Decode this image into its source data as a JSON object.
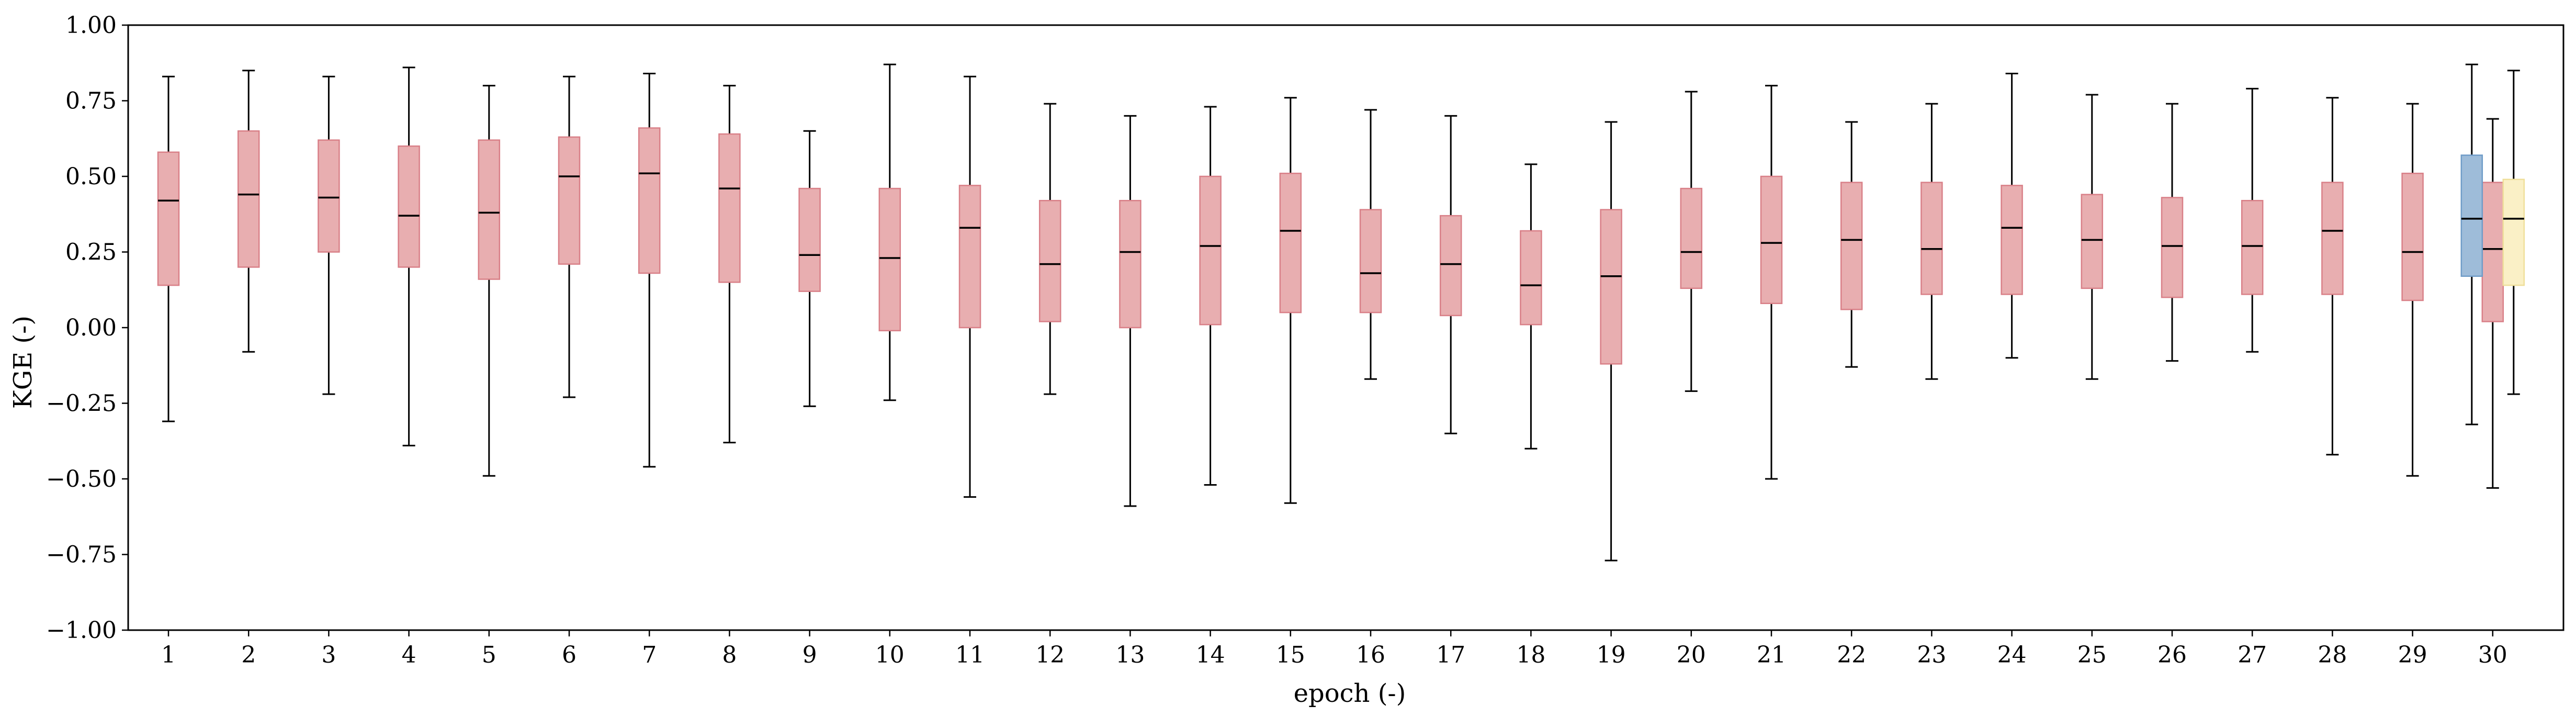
{
  "chart_data": {
    "type": "box",
    "xlabel": "epoch (-)",
    "ylabel": "KGE (-)",
    "ylim": [
      -1.0,
      1.0
    ],
    "yticks": [
      "1.00",
      "0.75",
      "0.50",
      "0.25",
      "0.00",
      "−0.25",
      "−0.50",
      "−0.75",
      "−1.00"
    ],
    "ytick_values": [
      1.0,
      0.75,
      0.5,
      0.25,
      0.0,
      -0.25,
      -0.5,
      -0.75,
      -1.0
    ],
    "categories": [
      "1",
      "2",
      "3",
      "4",
      "5",
      "6",
      "7",
      "8",
      "9",
      "10",
      "11",
      "12",
      "13",
      "14",
      "15",
      "16",
      "17",
      "18",
      "19",
      "20",
      "21",
      "22",
      "23",
      "24",
      "25",
      "26",
      "27",
      "28",
      "29",
      "30"
    ],
    "grid": false,
    "colors": {
      "box_fill": "#e8aeb0",
      "box_edge": "#d98088",
      "blue_fill": "#9ebcd9",
      "blue_edge": "#6f9cc8",
      "yellow_fill": "#faf0c6",
      "yellow_edge": "#efdf9a",
      "median": "#000000",
      "whisker": "#000000"
    },
    "series": [
      {
        "boxes": [
          {
            "x": "1",
            "whislo": -0.31,
            "q1": 0.14,
            "med": 0.42,
            "q3": 0.58,
            "whishi": 0.83
          },
          {
            "x": "2",
            "whislo": -0.08,
            "q1": 0.2,
            "med": 0.44,
            "q3": 0.65,
            "whishi": 0.85
          },
          {
            "x": "3",
            "whislo": -0.22,
            "q1": 0.25,
            "med": 0.43,
            "q3": 0.62,
            "whishi": 0.83
          },
          {
            "x": "4",
            "whislo": -0.39,
            "q1": 0.2,
            "med": 0.37,
            "q3": 0.6,
            "whishi": 0.86
          },
          {
            "x": "5",
            "whislo": -0.49,
            "q1": 0.16,
            "med": 0.38,
            "q3": 0.62,
            "whishi": 0.8
          },
          {
            "x": "6",
            "whislo": -0.23,
            "q1": 0.21,
            "med": 0.5,
            "q3": 0.63,
            "whishi": 0.83
          },
          {
            "x": "7",
            "whislo": -0.46,
            "q1": 0.18,
            "med": 0.51,
            "q3": 0.66,
            "whishi": 0.84
          },
          {
            "x": "8",
            "whislo": -0.38,
            "q1": 0.15,
            "med": 0.46,
            "q3": 0.64,
            "whishi": 0.8
          },
          {
            "x": "9",
            "whislo": -0.26,
            "q1": 0.12,
            "med": 0.24,
            "q3": 0.46,
            "whishi": 0.65
          },
          {
            "x": "10",
            "whislo": -0.24,
            "q1": -0.01,
            "med": 0.23,
            "q3": 0.46,
            "whishi": 0.87
          },
          {
            "x": "11",
            "whislo": -0.56,
            "q1": 0.0,
            "med": 0.33,
            "q3": 0.47,
            "whishi": 0.83
          },
          {
            "x": "12",
            "whislo": -0.22,
            "q1": 0.02,
            "med": 0.21,
            "q3": 0.42,
            "whishi": 0.74
          },
          {
            "x": "13",
            "whislo": -0.59,
            "q1": 0.0,
            "med": 0.25,
            "q3": 0.42,
            "whishi": 0.7
          },
          {
            "x": "14",
            "whislo": -0.52,
            "q1": 0.01,
            "med": 0.27,
            "q3": 0.5,
            "whishi": 0.73
          },
          {
            "x": "15",
            "whislo": -0.58,
            "q1": 0.05,
            "med": 0.32,
            "q3": 0.51,
            "whishi": 0.76
          },
          {
            "x": "16",
            "whislo": -0.17,
            "q1": 0.05,
            "med": 0.18,
            "q3": 0.39,
            "whishi": 0.72
          },
          {
            "x": "17",
            "whislo": -0.35,
            "q1": 0.04,
            "med": 0.21,
            "q3": 0.37,
            "whishi": 0.7
          },
          {
            "x": "18",
            "whislo": -0.4,
            "q1": 0.01,
            "med": 0.14,
            "q3": 0.32,
            "whishi": 0.54
          },
          {
            "x": "19",
            "whislo": -0.77,
            "q1": -0.12,
            "med": 0.17,
            "q3": 0.39,
            "whishi": 0.68
          },
          {
            "x": "20",
            "whislo": -0.21,
            "q1": 0.13,
            "med": 0.25,
            "q3": 0.46,
            "whishi": 0.78
          },
          {
            "x": "21",
            "whislo": -0.5,
            "q1": 0.08,
            "med": 0.28,
            "q3": 0.5,
            "whishi": 0.8
          },
          {
            "x": "22",
            "whislo": -0.13,
            "q1": 0.06,
            "med": 0.29,
            "q3": 0.48,
            "whishi": 0.68
          },
          {
            "x": "23",
            "whislo": -0.17,
            "q1": 0.11,
            "med": 0.26,
            "q3": 0.48,
            "whishi": 0.74
          },
          {
            "x": "24",
            "whislo": -0.1,
            "q1": 0.11,
            "med": 0.33,
            "q3": 0.47,
            "whishi": 0.84
          },
          {
            "x": "25",
            "whislo": -0.17,
            "q1": 0.13,
            "med": 0.29,
            "q3": 0.44,
            "whishi": 0.77
          },
          {
            "x": "26",
            "whislo": -0.11,
            "q1": 0.1,
            "med": 0.27,
            "q3": 0.43,
            "whishi": 0.74
          },
          {
            "x": "27",
            "whislo": -0.08,
            "q1": 0.11,
            "med": 0.27,
            "q3": 0.42,
            "whishi": 0.79
          },
          {
            "x": "28",
            "whislo": -0.42,
            "q1": 0.11,
            "med": 0.32,
            "q3": 0.48,
            "whishi": 0.76
          },
          {
            "x": "29",
            "whislo": -0.49,
            "q1": 0.09,
            "med": 0.25,
            "q3": 0.51,
            "whishi": 0.74
          },
          {
            "x": "30",
            "whislo": -0.53,
            "q1": 0.02,
            "med": 0.26,
            "q3": 0.48,
            "whishi": 0.69
          }
        ]
      },
      {
        "boxes": [
          {
            "x": "30",
            "whislo": -0.32,
            "q1": 0.17,
            "med": 0.36,
            "q3": 0.57,
            "whishi": 0.87
          }
        ]
      },
      {
        "boxes": [
          {
            "x": "30",
            "whislo": -0.22,
            "q1": 0.14,
            "med": 0.36,
            "q3": 0.49,
            "whishi": 0.85
          }
        ]
      }
    ]
  }
}
